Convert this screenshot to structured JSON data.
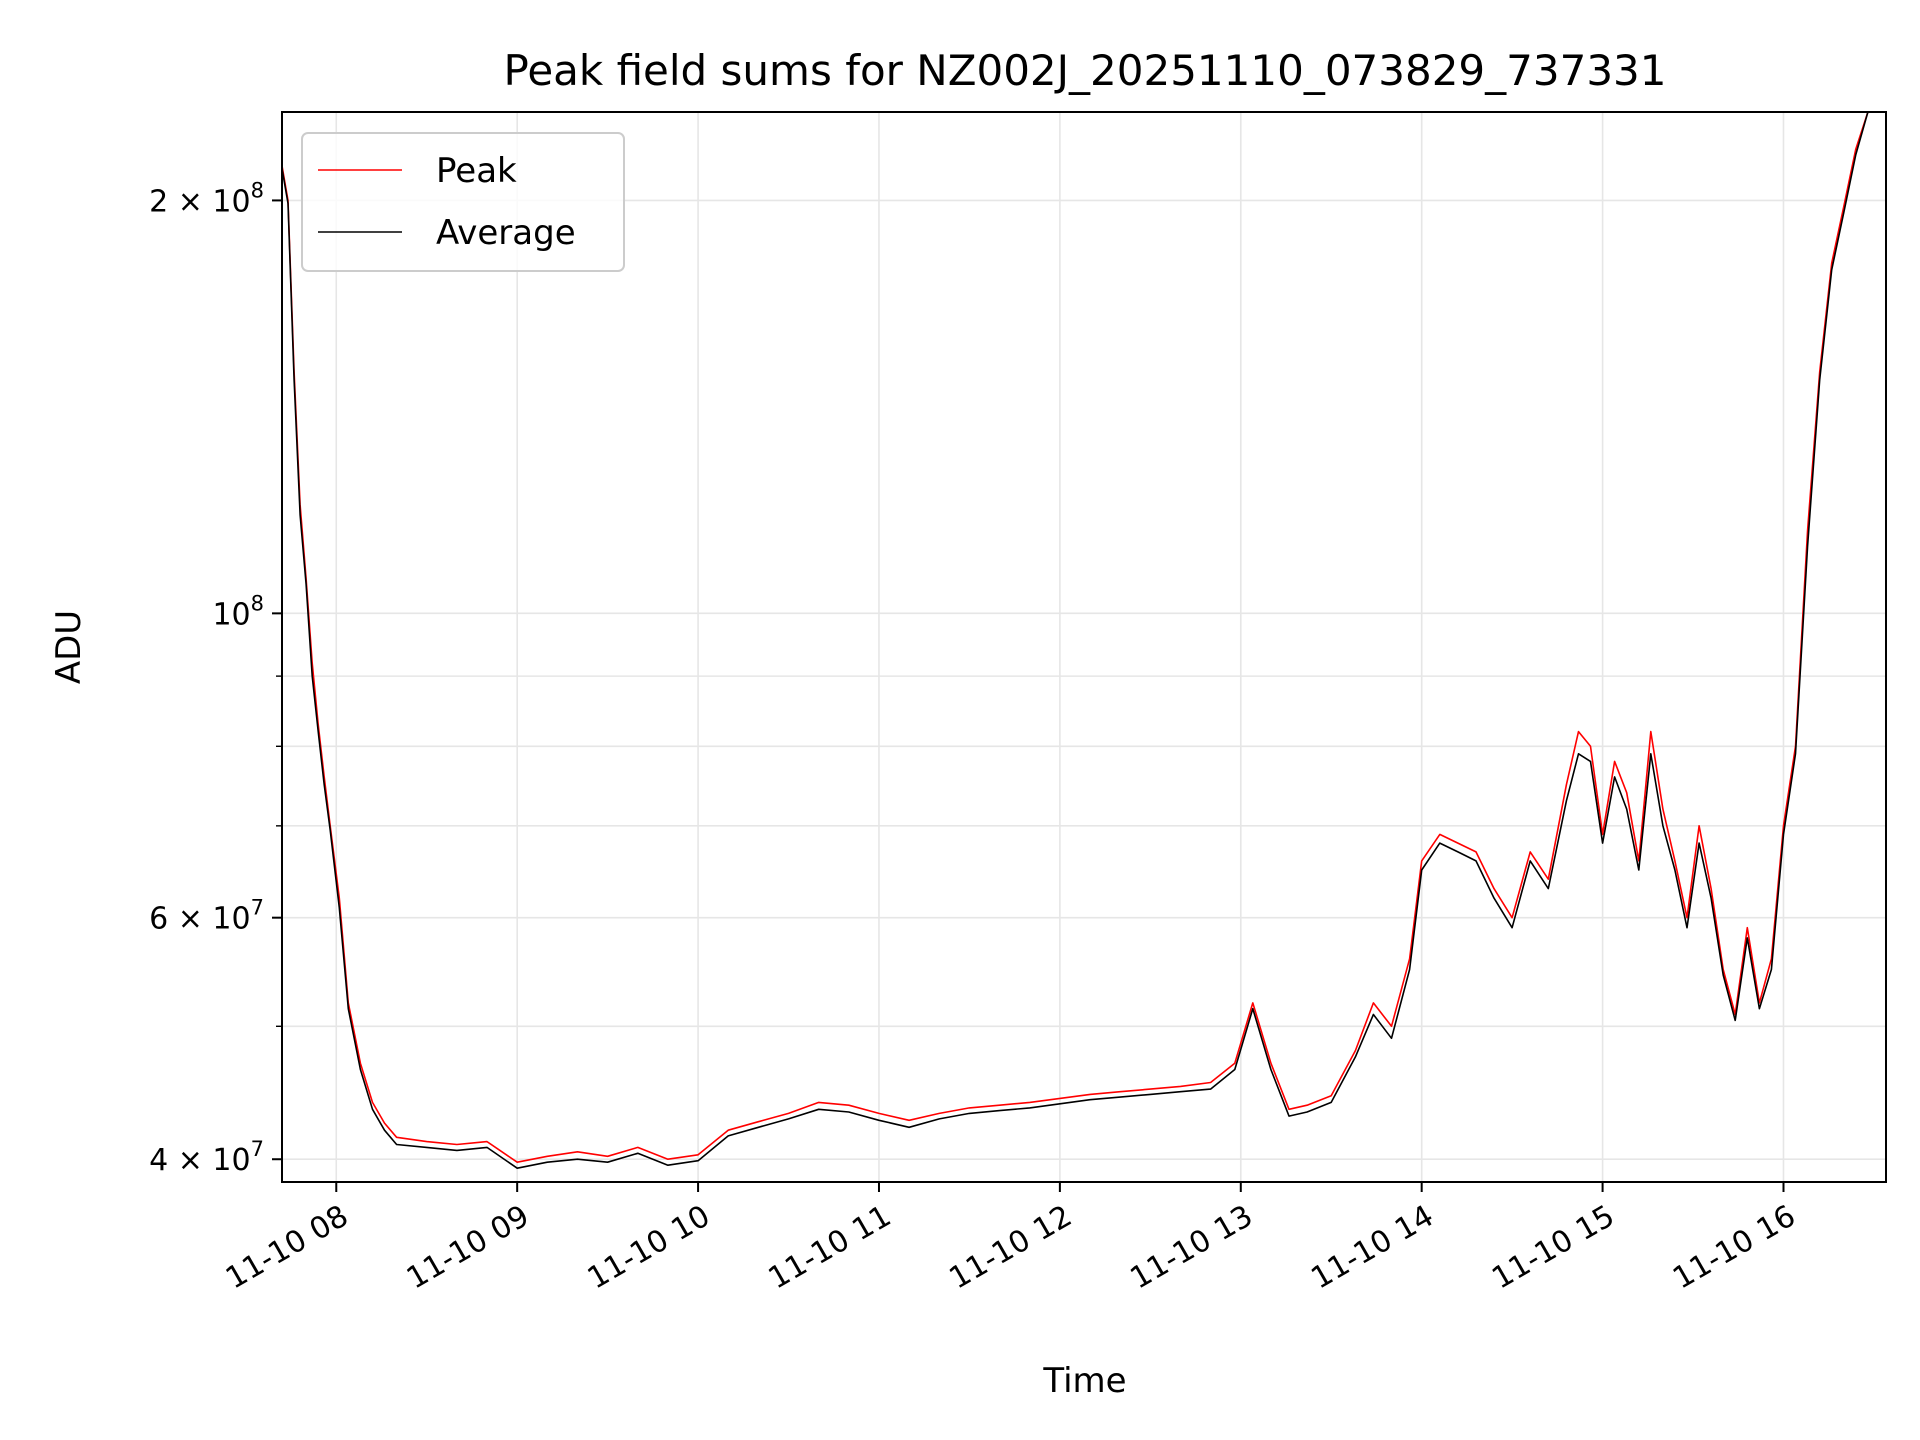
{
  "chart_data": {
    "type": "line",
    "title": "Peak field sums for NZ002J_20251110_073829_737331",
    "xlabel": "Time",
    "ylabel": "ADU",
    "y_scale": "log",
    "ylim": [
      38500000,
      232000000
    ],
    "xlim": [
      "2025-11-10 07:42",
      "2025-11-10 16:34"
    ],
    "grid": true,
    "legend_position": "upper-left",
    "x_ticks": [
      {
        "value": "2025-11-10 08:00",
        "label": "11-10 08"
      },
      {
        "value": "2025-11-10 09:00",
        "label": "11-10 09"
      },
      {
        "value": "2025-11-10 10:00",
        "label": "11-10 10"
      },
      {
        "value": "2025-11-10 11:00",
        "label": "11-10 11"
      },
      {
        "value": "2025-11-10 12:00",
        "label": "11-10 12"
      },
      {
        "value": "2025-11-10 13:00",
        "label": "11-10 13"
      },
      {
        "value": "2025-11-10 14:00",
        "label": "11-10 14"
      },
      {
        "value": "2025-11-10 15:00",
        "label": "11-10 15"
      },
      {
        "value": "2025-11-10 16:00",
        "label": "11-10 16"
      }
    ],
    "y_major_ticks": [
      {
        "value": 40000000,
        "mantissa": "4",
        "base": "10",
        "exp": "7"
      },
      {
        "value": 60000000,
        "mantissa": "6",
        "base": "10",
        "exp": "7"
      },
      {
        "value": 100000000,
        "mantissa": "",
        "base": "10",
        "exp": "8"
      },
      {
        "value": 200000000,
        "mantissa": "2",
        "base": "10",
        "exp": "8"
      }
    ],
    "y_minor_ticks": [
      50000000,
      70000000,
      80000000,
      90000000
    ],
    "series": [
      {
        "name": "Peak",
        "color": "#ff0000",
        "x": [
          "2025-11-10 07:42",
          "2025-11-10 07:44",
          "2025-11-10 07:46",
          "2025-11-10 07:48",
          "2025-11-10 07:50",
          "2025-11-10 07:52",
          "2025-11-10 07:54",
          "2025-11-10 07:56",
          "2025-11-10 07:58",
          "2025-11-10 08:01",
          "2025-11-10 08:04",
          "2025-11-10 08:08",
          "2025-11-10 08:12",
          "2025-11-10 08:16",
          "2025-11-10 08:20",
          "2025-11-10 08:30",
          "2025-11-10 08:40",
          "2025-11-10 08:50",
          "2025-11-10 09:00",
          "2025-11-10 09:10",
          "2025-11-10 09:20",
          "2025-11-10 09:30",
          "2025-11-10 09:40",
          "2025-11-10 09:50",
          "2025-11-10 10:00",
          "2025-11-10 10:10",
          "2025-11-10 10:20",
          "2025-11-10 10:30",
          "2025-11-10 10:40",
          "2025-11-10 10:50",
          "2025-11-10 11:00",
          "2025-11-10 11:10",
          "2025-11-10 11:20",
          "2025-11-10 11:30",
          "2025-11-10 11:40",
          "2025-11-10 11:50",
          "2025-11-10 12:00",
          "2025-11-10 12:10",
          "2025-11-10 12:20",
          "2025-11-10 12:30",
          "2025-11-10 12:40",
          "2025-11-10 12:50",
          "2025-11-10 12:58",
          "2025-11-10 13:04",
          "2025-11-10 13:10",
          "2025-11-10 13:16",
          "2025-11-10 13:22",
          "2025-11-10 13:30",
          "2025-11-10 13:38",
          "2025-11-10 13:44",
          "2025-11-10 13:50",
          "2025-11-10 13:56",
          "2025-11-10 14:00",
          "2025-11-10 14:06",
          "2025-11-10 14:12",
          "2025-11-10 14:18",
          "2025-11-10 14:24",
          "2025-11-10 14:30",
          "2025-11-10 14:36",
          "2025-11-10 14:42",
          "2025-11-10 14:48",
          "2025-11-10 14:52",
          "2025-11-10 14:56",
          "2025-11-10 15:00",
          "2025-11-10 15:04",
          "2025-11-10 15:08",
          "2025-11-10 15:12",
          "2025-11-10 15:16",
          "2025-11-10 15:20",
          "2025-11-10 15:24",
          "2025-11-10 15:28",
          "2025-11-10 15:32",
          "2025-11-10 15:36",
          "2025-11-10 15:40",
          "2025-11-10 15:44",
          "2025-11-10 15:48",
          "2025-11-10 15:52",
          "2025-11-10 15:56",
          "2025-11-10 16:00",
          "2025-11-10 16:04",
          "2025-11-10 16:08",
          "2025-11-10 16:12",
          "2025-11-10 16:16",
          "2025-11-10 16:20",
          "2025-11-10 16:24",
          "2025-11-10 16:28",
          "2025-11-10 16:34"
        ],
        "y": [
          212000000,
          200000000,
          150000000,
          120000000,
          106000000,
          92000000,
          83000000,
          76000000,
          70000000,
          62000000,
          52000000,
          47000000,
          44000000,
          42500000,
          41500000,
          41200000,
          41000000,
          41200000,
          39800000,
          40200000,
          40500000,
          40200000,
          40800000,
          40000000,
          40300000,
          42000000,
          42600000,
          43200000,
          44000000,
          43800000,
          43200000,
          42700000,
          43200000,
          43600000,
          43800000,
          44000000,
          44300000,
          44600000,
          44800000,
          45000000,
          45200000,
          45500000,
          47000000,
          52000000,
          47000000,
          43500000,
          43800000,
          44500000,
          48000000,
          52000000,
          50000000,
          56000000,
          66000000,
          69000000,
          68000000,
          67000000,
          63000000,
          60000000,
          67000000,
          64000000,
          75000000,
          82000000,
          80000000,
          69000000,
          78000000,
          74000000,
          66000000,
          82000000,
          72000000,
          66000000,
          60000000,
          70000000,
          63000000,
          55000000,
          51000000,
          59000000,
          52000000,
          56000000,
          70000000,
          80000000,
          115000000,
          150000000,
          180000000,
          198000000,
          218000000,
          232000000,
          232000000
        ]
      },
      {
        "name": "Average",
        "color": "#000000",
        "x": [
          "2025-11-10 07:42",
          "2025-11-10 07:44",
          "2025-11-10 07:46",
          "2025-11-10 07:48",
          "2025-11-10 07:50",
          "2025-11-10 07:52",
          "2025-11-10 07:54",
          "2025-11-10 07:56",
          "2025-11-10 07:58",
          "2025-11-10 08:01",
          "2025-11-10 08:04",
          "2025-11-10 08:08",
          "2025-11-10 08:12",
          "2025-11-10 08:16",
          "2025-11-10 08:20",
          "2025-11-10 08:30",
          "2025-11-10 08:40",
          "2025-11-10 08:50",
          "2025-11-10 09:00",
          "2025-11-10 09:10",
          "2025-11-10 09:20",
          "2025-11-10 09:30",
          "2025-11-10 09:40",
          "2025-11-10 09:50",
          "2025-11-10 10:00",
          "2025-11-10 10:10",
          "2025-11-10 10:20",
          "2025-11-10 10:30",
          "2025-11-10 10:40",
          "2025-11-10 10:50",
          "2025-11-10 11:00",
          "2025-11-10 11:10",
          "2025-11-10 11:20",
          "2025-11-10 11:30",
          "2025-11-10 11:40",
          "2025-11-10 11:50",
          "2025-11-10 12:00",
          "2025-11-10 12:10",
          "2025-11-10 12:20",
          "2025-11-10 12:30",
          "2025-11-10 12:40",
          "2025-11-10 12:50",
          "2025-11-10 12:58",
          "2025-11-10 13:04",
          "2025-11-10 13:10",
          "2025-11-10 13:16",
          "2025-11-10 13:22",
          "2025-11-10 13:30",
          "2025-11-10 13:38",
          "2025-11-10 13:44",
          "2025-11-10 13:50",
          "2025-11-10 13:56",
          "2025-11-10 14:00",
          "2025-11-10 14:06",
          "2025-11-10 14:12",
          "2025-11-10 14:18",
          "2025-11-10 14:24",
          "2025-11-10 14:30",
          "2025-11-10 14:36",
          "2025-11-10 14:42",
          "2025-11-10 14:48",
          "2025-11-10 14:52",
          "2025-11-10 14:56",
          "2025-11-10 15:00",
          "2025-11-10 15:04",
          "2025-11-10 15:08",
          "2025-11-10 15:12",
          "2025-11-10 15:16",
          "2025-11-10 15:20",
          "2025-11-10 15:24",
          "2025-11-10 15:28",
          "2025-11-10 15:32",
          "2025-11-10 15:36",
          "2025-11-10 15:40",
          "2025-11-10 15:44",
          "2025-11-10 15:48",
          "2025-11-10 15:52",
          "2025-11-10 15:56",
          "2025-11-10 16:00",
          "2025-11-10 16:04",
          "2025-11-10 16:08",
          "2025-11-10 16:12",
          "2025-11-10 16:16",
          "2025-11-10 16:20",
          "2025-11-10 16:24",
          "2025-11-10 16:28",
          "2025-11-10 16:34"
        ],
        "y": [
          211000000,
          199000000,
          148000000,
          118000000,
          105000000,
          90000000,
          82000000,
          75000000,
          69500000,
          61000000,
          51500000,
          46500000,
          43500000,
          42000000,
          41000000,
          40800000,
          40600000,
          40800000,
          39400000,
          39800000,
          40000000,
          39800000,
          40400000,
          39600000,
          39900000,
          41600000,
          42200000,
          42800000,
          43500000,
          43300000,
          42700000,
          42200000,
          42800000,
          43200000,
          43400000,
          43600000,
          43900000,
          44200000,
          44400000,
          44600000,
          44800000,
          45000000,
          46500000,
          51500000,
          46500000,
          43000000,
          43300000,
          44000000,
          47500000,
          51000000,
          49000000,
          55000000,
          65000000,
          68000000,
          67000000,
          66000000,
          62000000,
          59000000,
          66000000,
          63000000,
          73000000,
          79000000,
          78000000,
          68000000,
          76000000,
          72000000,
          65000000,
          79000000,
          70000000,
          65000000,
          59000000,
          68000000,
          62000000,
          54500000,
          50500000,
          58000000,
          51500000,
          55000000,
          69000000,
          79000000,
          112000000,
          148000000,
          178000000,
          196000000,
          216000000,
          232000000,
          232000000
        ]
      }
    ]
  }
}
